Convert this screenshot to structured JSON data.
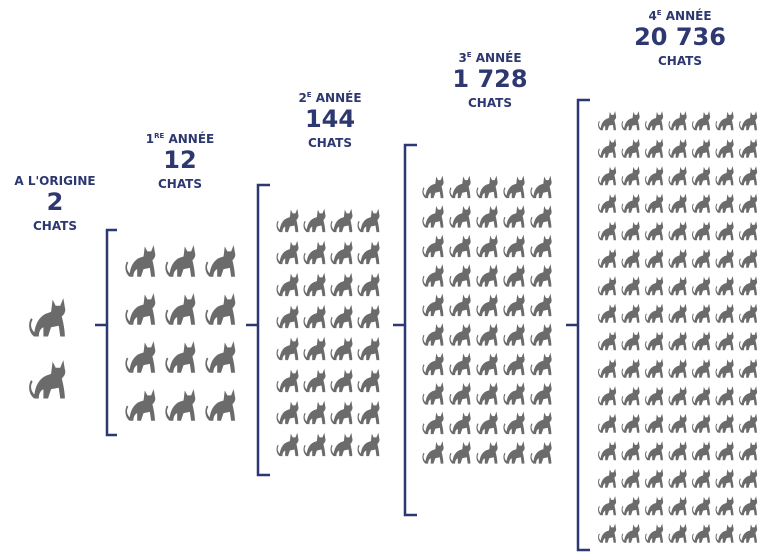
{
  "stages": [
    {
      "label": "A L'ORIGINE",
      "count": "2",
      "unit": "CHATS"
    },
    {
      "ordinal": "1",
      "suffix": "RE",
      "label": " ANNÉE",
      "count": "12",
      "unit": "CHATS"
    },
    {
      "ordinal": "2",
      "suffix": "E",
      "label": " ANNÉE",
      "count": "144",
      "unit": "CHATS"
    },
    {
      "ordinal": "3",
      "suffix": "E",
      "label": " ANNÉE",
      "count": "1 728",
      "unit": "CHATS"
    },
    {
      "ordinal": "4",
      "suffix": "E",
      "label": " ANNÉE",
      "count": "20 736",
      "unit": "CHATS"
    }
  ]
}
